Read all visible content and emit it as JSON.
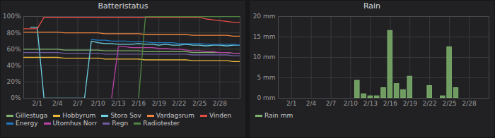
{
  "chart_data": [
    {
      "type": "line",
      "title": "Batteristatus",
      "grid": true,
      "legend": "bottom",
      "x": [
        -1,
        0,
        1,
        2,
        3,
        4,
        5,
        6,
        7,
        8,
        9,
        10,
        11,
        12,
        13,
        14,
        15,
        16,
        17,
        18,
        19,
        20,
        21,
        22,
        23,
        24,
        25,
        26,
        27,
        28,
        29,
        30,
        31
      ],
      "xlim": [
        -1,
        31
      ],
      "xticks": [
        {
          "value": 1,
          "label": "2/1"
        },
        {
          "value": 4,
          "label": "2/4"
        },
        {
          "value": 7,
          "label": "2/7"
        },
        {
          "value": 10,
          "label": "2/10"
        },
        {
          "value": 13,
          "label": "2/13"
        },
        {
          "value": 16,
          "label": "2/16"
        },
        {
          "value": 19,
          "label": "2/19"
        },
        {
          "value": 22,
          "label": "2/22"
        },
        {
          "value": 25,
          "label": "2/25"
        },
        {
          "value": 28,
          "label": "2/28"
        }
      ],
      "ylim": [
        0,
        100
      ],
      "yticks": [
        {
          "value": 0,
          "label": "0%"
        },
        {
          "value": 20,
          "label": "20%"
        },
        {
          "value": 40,
          "label": "40%"
        },
        {
          "value": 60,
          "label": "60%"
        },
        {
          "value": 80,
          "label": "80%"
        },
        {
          "value": 100,
          "label": "100%"
        }
      ],
      "series": [
        {
          "name": "Gillestuga",
          "color": "#7EB26D",
          "values": [
            60,
            60,
            60,
            60,
            60,
            60,
            59,
            59,
            59,
            59,
            59,
            59,
            58,
            58,
            58,
            58,
            58,
            58,
            57,
            57,
            57,
            57,
            57,
            57,
            57,
            56,
            56,
            56,
            56,
            56,
            56,
            55,
            55
          ]
        },
        {
          "name": "Hobbyrum",
          "color": "#EAB839",
          "values": [
            50,
            50,
            50,
            50,
            50,
            50,
            49,
            49,
            49,
            49,
            49,
            49,
            48,
            48,
            48,
            48,
            48,
            48,
            47,
            47,
            47,
            47,
            47,
            47,
            47,
            46,
            46,
            46,
            46,
            46,
            46,
            45,
            45
          ]
        },
        {
          "name": "Stora Sov",
          "color": "#6ED0E0",
          "values": [
            null,
            87,
            87,
            0,
            0,
            0,
            0,
            0,
            0,
            0,
            70,
            68,
            67,
            67,
            66,
            66,
            66,
            67,
            66,
            66,
            65,
            66,
            65,
            65,
            66,
            65,
            65,
            64,
            65,
            65,
            64,
            65,
            65
          ]
        },
        {
          "name": "Vardagsrum",
          "color": "#EF843C",
          "values": [
            81,
            81,
            81,
            81,
            81,
            81,
            80,
            80,
            80,
            80,
            80,
            80,
            79,
            79,
            79,
            79,
            79,
            79,
            78,
            78,
            78,
            78,
            78,
            78,
            78,
            77,
            77,
            77,
            77,
            77,
            77,
            76,
            76
          ]
        },
        {
          "name": "Vinden",
          "color": "#E24D42",
          "values": [
            85,
            85,
            85,
            99,
            99,
            99,
            99,
            99,
            99,
            99,
            99,
            99,
            99,
            99,
            99,
            99,
            99,
            99,
            99,
            99,
            99,
            99,
            99,
            99,
            99,
            99,
            99,
            97,
            96,
            95,
            94,
            93,
            93
          ]
        },
        {
          "name": "Energy",
          "color": "#1F78C1",
          "values": [
            null,
            null,
            null,
            null,
            null,
            null,
            null,
            null,
            null,
            null,
            72,
            71,
            71,
            70,
            70,
            70,
            69,
            69,
            69,
            68,
            68,
            68,
            68,
            67,
            67,
            67,
            67,
            66,
            66,
            66,
            66,
            66,
            65
          ]
        },
        {
          "name": "Utomhus Norr",
          "color": "#BA43A9",
          "values": [
            null,
            null,
            null,
            null,
            null,
            null,
            null,
            null,
            null,
            null,
            null,
            null,
            null,
            0,
            63,
            63,
            62,
            62,
            62,
            62,
            61,
            61,
            60,
            60,
            59,
            58,
            58,
            57,
            57,
            56,
            56,
            55,
            55
          ]
        },
        {
          "name": "Regn",
          "color": "#705DA0",
          "values": [
            56,
            56,
            56,
            56,
            56,
            56,
            55,
            55,
            55,
            55,
            55,
            55,
            54,
            54,
            54,
            54,
            54,
            54,
            54,
            54,
            54,
            54,
            54,
            54,
            54,
            53,
            53,
            53,
            53,
            53,
            53,
            52,
            52
          ]
        },
        {
          "name": "Radiotester",
          "color": "#508642",
          "values": [
            null,
            null,
            null,
            null,
            null,
            null,
            null,
            null,
            null,
            null,
            null,
            null,
            null,
            null,
            null,
            null,
            null,
            0,
            100,
            100,
            100,
            100,
            100,
            100,
            100,
            100,
            100,
            100,
            100,
            100,
            100,
            100,
            100
          ]
        }
      ]
    },
    {
      "type": "bar",
      "title": "Rain",
      "grid": true,
      "legend": "bottom",
      "x": [
        11,
        12,
        13,
        14,
        15,
        16,
        17,
        18,
        19,
        22,
        24,
        25,
        26
      ],
      "xlim": [
        -1,
        31
      ],
      "xticks": [
        {
          "value": 1,
          "label": "2/1"
        },
        {
          "value": 4,
          "label": "2/4"
        },
        {
          "value": 7,
          "label": "2/7"
        },
        {
          "value": 10,
          "label": "2/10"
        },
        {
          "value": 13,
          "label": "2/13"
        },
        {
          "value": 16,
          "label": "2/16"
        },
        {
          "value": 19,
          "label": "2/19"
        },
        {
          "value": 22,
          "label": "2/22"
        },
        {
          "value": 25,
          "label": "2/25"
        },
        {
          "value": 28,
          "label": "2/28"
        }
      ],
      "ylim": [
        0,
        20
      ],
      "yticks": [
        {
          "value": 0,
          "label": "0 mm"
        },
        {
          "value": 5,
          "label": "5 mm"
        },
        {
          "value": 10,
          "label": "10 mm"
        },
        {
          "value": 15,
          "label": "15 mm"
        },
        {
          "value": 20,
          "label": "20 mm"
        }
      ],
      "series": [
        {
          "name": "Rain mm",
          "color": "#7EB26D",
          "values": [
            4.3,
            1,
            0.5,
            0.5,
            2.5,
            16.5,
            3.5,
            2,
            5.3,
            3,
            0.5,
            12.5,
            2.5
          ]
        }
      ]
    }
  ]
}
